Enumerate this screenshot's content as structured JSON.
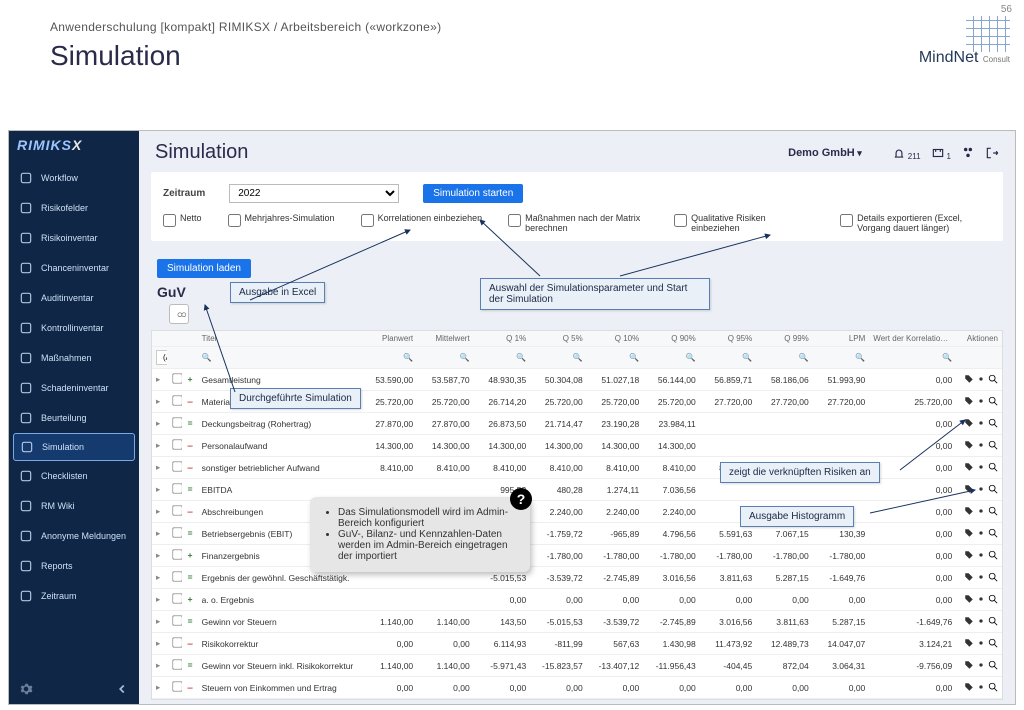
{
  "slide": {
    "page_num": "56",
    "breadcrumb": "Anwenderschulung [kompakt] RIMIKSX / Arbeitsbereich («workzone»)",
    "title": "Simulation",
    "logo_brand": "MindNet",
    "logo_sub": "Consult"
  },
  "colors": {
    "sidebar_bg": "#0f2647",
    "accent": "#1a73e8",
    "callout_bg": "#eaf0f8",
    "callout_border": "#5a7fb3"
  },
  "sidebar": {
    "brand": "RIMIKS",
    "brand_x": "X",
    "items": [
      {
        "label": "Workflow",
        "icon": "workflow-icon"
      },
      {
        "label": "Risikofelder",
        "icon": "target-icon"
      },
      {
        "label": "Risikoinventar",
        "icon": "list-icon"
      },
      {
        "label": "Chanceninventar",
        "icon": "grid-icon"
      },
      {
        "label": "Auditinventar",
        "icon": "clipboard-icon"
      },
      {
        "label": "Kontrollinventar",
        "icon": "shield-icon"
      },
      {
        "label": "Maßnahmen",
        "icon": "tasks-icon"
      },
      {
        "label": "Schadeninventar",
        "icon": "search-icon"
      },
      {
        "label": "Beurteilung",
        "icon": "gauge-icon"
      },
      {
        "label": "Simulation",
        "icon": "chart-icon",
        "active": true
      },
      {
        "label": "Checklisten",
        "icon": "check-icon"
      },
      {
        "label": "RM Wiki",
        "icon": "book-icon"
      },
      {
        "label": "Anonyme Meldungen",
        "icon": "incognito-icon"
      },
      {
        "label": "Reports",
        "icon": "report-icon"
      },
      {
        "label": "Zeitraum",
        "icon": "calendar-icon"
      }
    ]
  },
  "topbar": {
    "title": "Simulation",
    "tenant": "Demo GmbH",
    "bell_count": "211",
    "inbox_count": "1"
  },
  "params": {
    "zeitraum_label": "Zeitraum",
    "year": "2022",
    "start_btn": "Simulation starten",
    "load_btn": "Simulation laden",
    "checks": [
      "Netto",
      "Mehrjahres-Simulation",
      "Korrelationen einbeziehen",
      "Maßnahmen nach der Matrix berechnen",
      "Qualitative Risiken einbeziehen",
      "Details exportieren (Excel, Vorgang dauert länger)"
    ]
  },
  "guv_label": "GuV",
  "callouts": {
    "excel": "Ausgabe in Excel",
    "params": "Auswahl der Simulationsparameter und Start der Simulation",
    "done": "Durchgeführte Simulation",
    "risks": "zeigt die verknüpften Risiken an",
    "histo": "Ausgabe Histogramm",
    "tooltip": [
      "Das Simulationsmodell wird im Admin-Bereich konfiguriert",
      "GuV-, Bilanz- und Kennzahlen-Daten werden im Admin-Bereich eingetragen der importiert"
    ]
  },
  "table": {
    "filter_all": "(Alle)",
    "headers": [
      "",
      "",
      "",
      "Titel",
      "Planwert",
      "Mittelwert",
      "Q 1%",
      "Q 5%",
      "Q 10%",
      "Q 90%",
      "Q 95%",
      "Q 99%",
      "LPM",
      "Wert der Korrelationsformel",
      "Aktionen"
    ],
    "rows": [
      {
        "sign": "+",
        "t": "Gesamtleistung",
        "v": [
          "53.590,00",
          "53.587,70",
          "48.930,35",
          "50.304,08",
          "51.027,18",
          "56.144,00",
          "56.859,71",
          "58.186,06",
          "51.993,90",
          "0,00"
        ]
      },
      {
        "sign": "-",
        "t": "Materialaufwand",
        "v": [
          "25.720,00",
          "25.720,00",
          "26.714,20",
          "25.720,00",
          "25.720,00",
          "25.720,00",
          "27.720,00",
          "27.720,00",
          "27.720,00",
          "25.720,00"
        ]
      },
      {
        "sign": "=",
        "t": "Deckungsbeitrag (Rohertrag)",
        "v": [
          "27.870,00",
          "27.870,00",
          "26.873,50",
          "21.714,47",
          "23.190,28",
          "23.984,11",
          "",
          "",
          "",
          "0,00"
        ]
      },
      {
        "sign": "-",
        "t": "Personalaufwand",
        "v": [
          "14.300,00",
          "14.300,00",
          "14.300,00",
          "14.300,00",
          "14.300,00",
          "14.300,00",
          "",
          "",
          "",
          "0,00"
        ]
      },
      {
        "sign": "-",
        "t": "sonstiger betrieblicher Aufwand",
        "v": [
          "8.410,00",
          "8.410,00",
          "8.410,00",
          "8.410,00",
          "8.410,00",
          "8.410,00",
          "8.410,00",
          "8.410,00",
          "8.410,00",
          "0,00"
        ]
      },
      {
        "sign": "=",
        "t": "EBITDA",
        "v": [
          "",
          "",
          "995,53",
          "480,28",
          "1.274,11",
          "7.036,56",
          "",
          "",
          "",
          "0,00"
        ]
      },
      {
        "sign": "-",
        "t": "Abschreibungen",
        "v": [
          "",
          "",
          "2.240,00",
          "2.240,00",
          "2.240,00",
          "2.240,00",
          "",
          "",
          "",
          "0,00"
        ]
      },
      {
        "sign": "=",
        "t": "Betriebsergebnis (EBIT)",
        "v": [
          "",
          "",
          "-3.235,53",
          "-1.759,72",
          "-965,89",
          "4.796,56",
          "5.591,63",
          "7.067,15",
          "130,39",
          "0,00"
        ]
      },
      {
        "sign": "+",
        "t": "Finanzergebnis",
        "v": [
          "",
          "",
          "-1.780,00",
          "-1.780,00",
          "-1.780,00",
          "-1.780,00",
          "-1.780,00",
          "-1.780,00",
          "-1.780,00",
          "0,00"
        ]
      },
      {
        "sign": "=",
        "t": "Ergebnis der gewöhnl. Geschäftstätigk.",
        "v": [
          "",
          "",
          "-5.015,53",
          "-3.539,72",
          "-2.745,89",
          "3.016,56",
          "3.811,63",
          "5.287,15",
          "-1.649,76",
          "0,00"
        ]
      },
      {
        "sign": "+",
        "t": "a. o. Ergebnis",
        "v": [
          "",
          "",
          "0,00",
          "0,00",
          "0,00",
          "0,00",
          "0,00",
          "0,00",
          "0,00",
          "0,00"
        ]
      },
      {
        "sign": "=",
        "t": "Gewinn vor Steuern",
        "v": [
          "1.140,00",
          "1.140,00",
          "143,50",
          "-5.015,53",
          "-3.539,72",
          "-2.745,89",
          "3.016,56",
          "3.811,63",
          "5.287,15",
          "-1.649,76"
        ]
      },
      {
        "sign": "-",
        "t": "Risikokorrektur",
        "v": [
          "0,00",
          "0,00",
          "6.114,93",
          "-811,99",
          "567,63",
          "1.430,98",
          "11.473,92",
          "12.489,73",
          "14.047,07",
          "3.124,21"
        ]
      },
      {
        "sign": "=",
        "t": "Gewinn vor Steuern inkl. Risikokorrektur",
        "v": [
          "1.140,00",
          "1.140,00",
          "-5.971,43",
          "-15.823,57",
          "-13.407,12",
          "-11.956,43",
          "-404,45",
          "872,04",
          "3.064,31",
          "-9.756,09"
        ]
      },
      {
        "sign": "-",
        "t": "Steuern von Einkommen und Ertrag",
        "v": [
          "0,00",
          "0,00",
          "0,00",
          "0,00",
          "0,00",
          "0,00",
          "0,00",
          "0,00",
          "0,00",
          "0,00"
        ]
      }
    ]
  }
}
